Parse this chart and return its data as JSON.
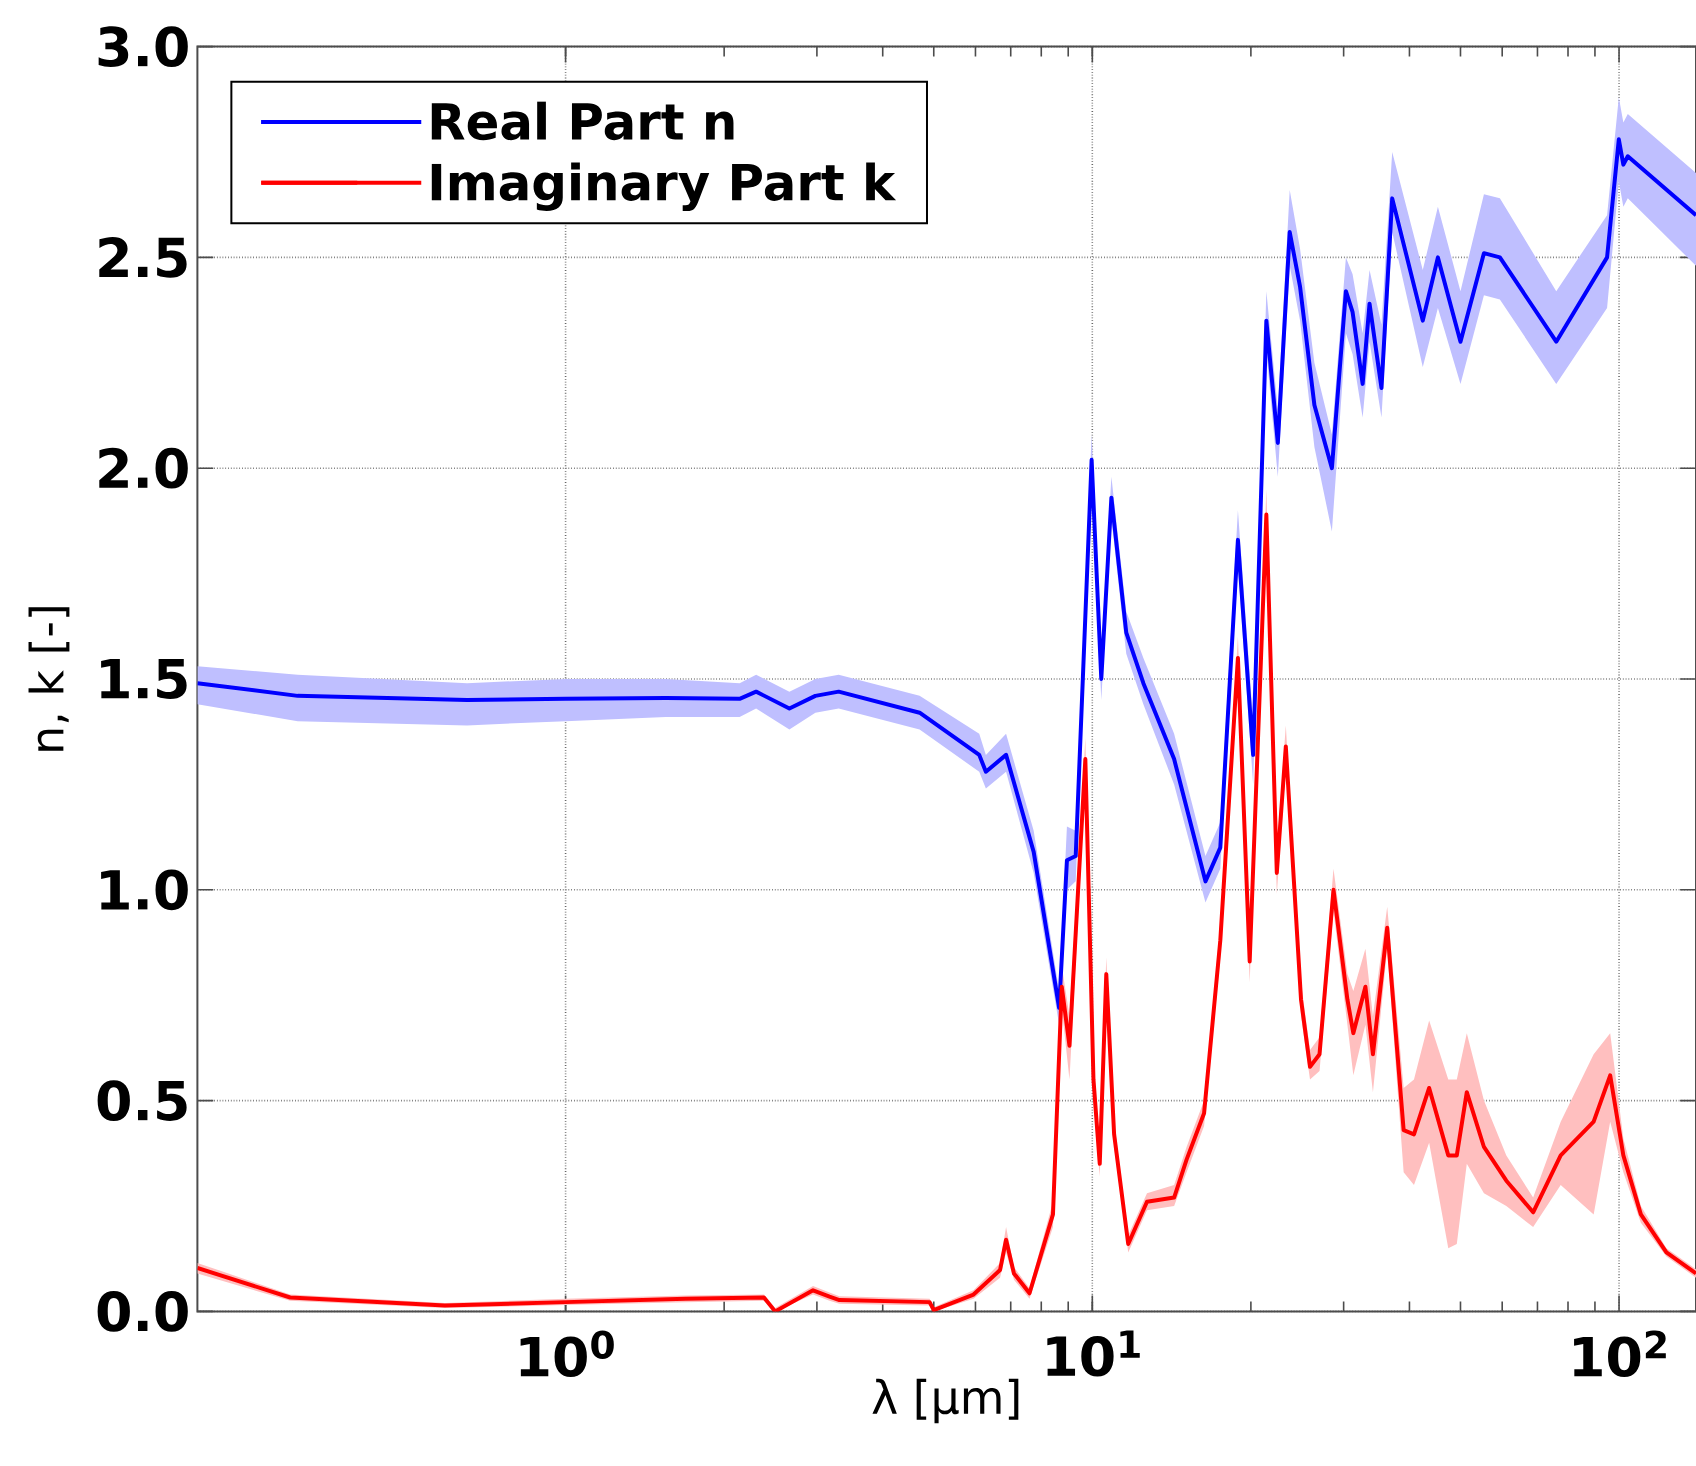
{
  "chart_data": {
    "type": "line",
    "xlabel": "λ [μm]",
    "ylabel": "n, k [-]",
    "log": "x",
    "grid": true,
    "legend": "top left",
    "xlim": [
      0.2,
      140
    ],
    "xticks": [
      {
        "value": 1,
        "label": "10$^{0}$"
      },
      {
        "value": 10,
        "label": "10$^{1}$"
      },
      {
        "value": 100,
        "label": "10$^{2}$"
      }
    ],
    "ylim": [
      0,
      3
    ],
    "yticks": [
      {
        "value": 0,
        "label": "0.0"
      },
      {
        "value": 0.5,
        "label": "0.5"
      },
      {
        "value": 1,
        "label": "1.0"
      },
      {
        "value": 1.5,
        "label": "1.5"
      },
      {
        "value": 2,
        "label": "2.0"
      },
      {
        "value": 2.5,
        "label": "2.5"
      },
      {
        "value": 3,
        "label": "3.0"
      }
    ],
    "series": [
      {
        "name": "Real Part n",
        "color": "#0000ff",
        "x": [
          0.2,
          0.31,
          0.65,
          1.0,
          1.55,
          2.14,
          2.3,
          2.66,
          2.98,
          3.3,
          4.7,
          6.1,
          6.28,
          6.86,
          7.74,
          8.65,
          8.95,
          9.3,
          9.97,
          10.4,
          10.87,
          11.6,
          12.5,
          14.3,
          16.4,
          17.5,
          18.9,
          20.2,
          21.4,
          22.5,
          23.7,
          24.8,
          26.4,
          28.5,
          30.3,
          31.2,
          32.6,
          33.6,
          35.4,
          37.1,
          42.4,
          45.3,
          50.0,
          55.4,
          59.4,
          76.0,
          94.9,
          99.9,
          101.9,
          103.9,
          140
        ],
        "values": [
          1.49,
          1.46,
          1.45,
          1.453,
          1.455,
          1.453,
          1.47,
          1.43,
          1.46,
          1.47,
          1.42,
          1.32,
          1.28,
          1.32,
          1.09,
          0.72,
          1.07,
          1.08,
          2.02,
          1.5,
          1.93,
          1.61,
          1.49,
          1.31,
          1.02,
          1.1,
          1.83,
          1.32,
          2.35,
          2.06,
          2.56,
          2.43,
          2.15,
          2.0,
          2.42,
          2.37,
          2.2,
          2.39,
          2.19,
          2.64,
          2.35,
          2.5,
          2.3,
          2.51,
          2.5,
          2.3,
          2.5,
          2.78,
          2.72,
          2.74,
          2.6
        ],
        "lower": [
          1.44,
          1.4,
          1.39,
          1.4,
          1.41,
          1.41,
          1.43,
          1.38,
          1.42,
          1.43,
          1.38,
          1.28,
          1.24,
          1.28,
          1.04,
          0.68,
          1.0,
          1.02,
          1.97,
          1.45,
          1.88,
          1.56,
          1.44,
          1.25,
          0.97,
          1.05,
          1.77,
          1.25,
          2.28,
          1.98,
          2.48,
          2.35,
          2.05,
          1.85,
          2.32,
          2.27,
          2.12,
          2.3,
          2.12,
          2.56,
          2.24,
          2.38,
          2.2,
          2.41,
          2.4,
          2.2,
          2.38,
          2.68,
          2.62,
          2.64,
          2.48
        ],
        "upper": [
          1.53,
          1.51,
          1.49,
          1.5,
          1.5,
          1.49,
          1.51,
          1.47,
          1.5,
          1.51,
          1.46,
          1.37,
          1.32,
          1.37,
          1.14,
          0.76,
          1.15,
          1.14,
          2.08,
          1.56,
          1.98,
          1.66,
          1.55,
          1.37,
          1.08,
          1.16,
          1.9,
          1.4,
          2.42,
          2.14,
          2.66,
          2.52,
          2.25,
          2.08,
          2.5,
          2.46,
          2.32,
          2.47,
          2.34,
          2.75,
          2.47,
          2.62,
          2.42,
          2.65,
          2.64,
          2.42,
          2.6,
          2.88,
          2.82,
          2.84,
          2.7
        ]
      },
      {
        "name": "Imaginary Part k",
        "color": "#ff0000",
        "x": [
          0.2,
          0.3,
          0.59,
          1.0,
          1.69,
          2.38,
          2.5,
          2.95,
          3.17,
          3.31,
          4.91,
          5.0,
          5.95,
          6.68,
          6.86,
          7.1,
          7.6,
          8.42,
          8.75,
          9.05,
          9.7,
          10.05,
          10.33,
          10.63,
          11.0,
          11.7,
          12.7,
          14.3,
          15.1,
          16.3,
          17.5,
          18.9,
          19.9,
          21.4,
          22.4,
          23.3,
          24.9,
          25.9,
          27.0,
          28.7,
          30.5,
          31.3,
          33.0,
          34.1,
          36.3,
          39.0,
          40.8,
          43.6,
          47.4,
          49.2,
          51.4,
          55.4,
          61.1,
          68.7,
          77.5,
          89.5,
          96.2,
          101.9,
          110,
          123,
          140
        ],
        "values": [
          0.103,
          0.033,
          0.014,
          0.022,
          0.03,
          0.033,
          0.0,
          0.05,
          0.035,
          0.027,
          0.022,
          0.003,
          0.04,
          0.098,
          0.17,
          0.09,
          0.043,
          0.23,
          0.77,
          0.63,
          1.31,
          0.55,
          0.35,
          0.8,
          0.42,
          0.16,
          0.26,
          0.27,
          0.36,
          0.47,
          0.88,
          1.55,
          0.83,
          1.89,
          1.04,
          1.34,
          0.74,
          0.58,
          0.61,
          1.0,
          0.74,
          0.66,
          0.77,
          0.61,
          0.91,
          0.43,
          0.42,
          0.53,
          0.37,
          0.37,
          0.52,
          0.39,
          0.31,
          0.235,
          0.37,
          0.45,
          0.56,
          0.37,
          0.23,
          0.14,
          0.09
        ],
        "lower": [
          0.09,
          0.025,
          0.008,
          0.015,
          0.022,
          0.025,
          0.0,
          0.04,
          0.025,
          0.018,
          0.014,
          0.0,
          0.03,
          0.08,
          0.14,
          0.075,
          0.03,
          0.2,
          0.72,
          0.55,
          1.26,
          0.5,
          0.32,
          0.76,
          0.39,
          0.14,
          0.24,
          0.25,
          0.33,
          0.44,
          0.84,
          1.5,
          0.78,
          1.83,
          0.99,
          1.29,
          0.7,
          0.55,
          0.57,
          0.95,
          0.68,
          0.56,
          0.68,
          0.52,
          0.86,
          0.33,
          0.3,
          0.4,
          0.15,
          0.16,
          0.35,
          0.28,
          0.25,
          0.2,
          0.3,
          0.23,
          0.45,
          0.33,
          0.21,
          0.13,
          0.08
        ],
        "upper": [
          0.115,
          0.04,
          0.02,
          0.03,
          0.038,
          0.04,
          0.008,
          0.06,
          0.045,
          0.036,
          0.03,
          0.01,
          0.05,
          0.115,
          0.2,
          0.105,
          0.055,
          0.26,
          0.82,
          0.7,
          1.36,
          0.6,
          0.38,
          0.84,
          0.45,
          0.18,
          0.28,
          0.3,
          0.39,
          0.5,
          0.92,
          1.6,
          0.88,
          1.95,
          1.09,
          1.39,
          0.78,
          0.62,
          0.65,
          1.05,
          0.8,
          0.76,
          0.86,
          0.7,
          0.96,
          0.53,
          0.55,
          0.69,
          0.55,
          0.55,
          0.66,
          0.5,
          0.37,
          0.27,
          0.45,
          0.61,
          0.66,
          0.41,
          0.25,
          0.15,
          0.1
        ]
      }
    ]
  }
}
